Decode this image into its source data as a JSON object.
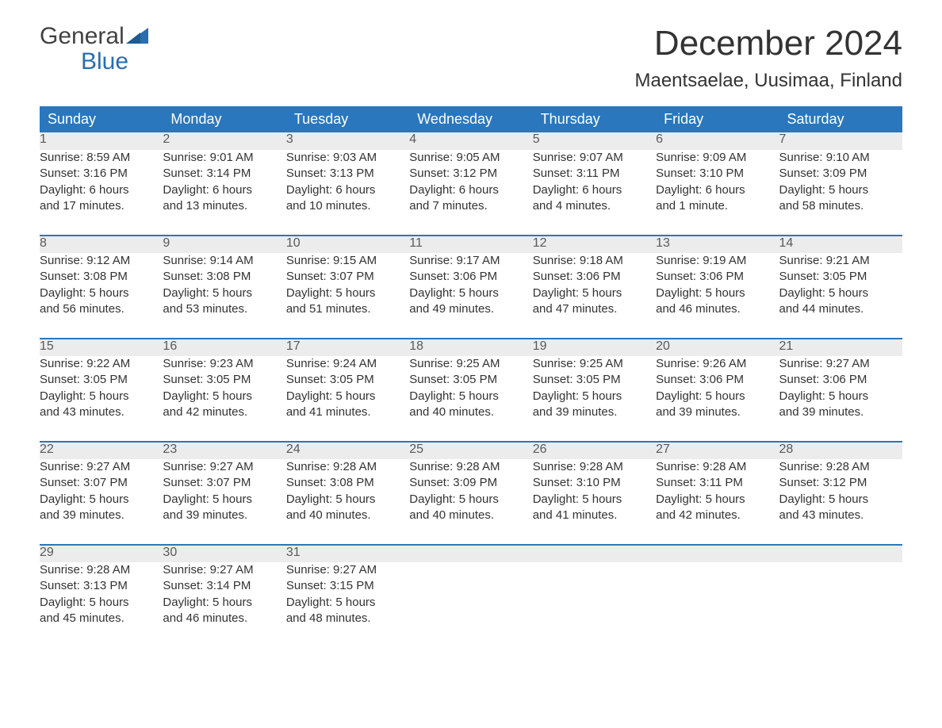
{
  "brand": {
    "word1": "General",
    "word2": "Blue",
    "logo_color": "#2a6db0",
    "logo_text_color": "#424242"
  },
  "title": "December 2024",
  "location": "Maentsaelae, Uusimaa, Finland",
  "colors": {
    "header_bg": "#2a77bd",
    "header_fg": "#ffffff",
    "daynum_bg": "#ececec",
    "daynum_fg": "#5a5a5a",
    "body_fg": "#333333",
    "week_border": "#2a77bd",
    "page_bg": "#ffffff"
  },
  "typography": {
    "title_fontsize": 44,
    "location_fontsize": 24,
    "header_fontsize": 18,
    "daynum_fontsize": 16,
    "detail_fontsize": 15
  },
  "day_headers": [
    "Sunday",
    "Monday",
    "Tuesday",
    "Wednesday",
    "Thursday",
    "Friday",
    "Saturday"
  ],
  "weeks": [
    [
      {
        "n": "1",
        "sunrise": "Sunrise: 8:59 AM",
        "sunset": "Sunset: 3:16 PM",
        "d1": "Daylight: 6 hours",
        "d2": "and 17 minutes."
      },
      {
        "n": "2",
        "sunrise": "Sunrise: 9:01 AM",
        "sunset": "Sunset: 3:14 PM",
        "d1": "Daylight: 6 hours",
        "d2": "and 13 minutes."
      },
      {
        "n": "3",
        "sunrise": "Sunrise: 9:03 AM",
        "sunset": "Sunset: 3:13 PM",
        "d1": "Daylight: 6 hours",
        "d2": "and 10 minutes."
      },
      {
        "n": "4",
        "sunrise": "Sunrise: 9:05 AM",
        "sunset": "Sunset: 3:12 PM",
        "d1": "Daylight: 6 hours",
        "d2": "and 7 minutes."
      },
      {
        "n": "5",
        "sunrise": "Sunrise: 9:07 AM",
        "sunset": "Sunset: 3:11 PM",
        "d1": "Daylight: 6 hours",
        "d2": "and 4 minutes."
      },
      {
        "n": "6",
        "sunrise": "Sunrise: 9:09 AM",
        "sunset": "Sunset: 3:10 PM",
        "d1": "Daylight: 6 hours",
        "d2": "and 1 minute."
      },
      {
        "n": "7",
        "sunrise": "Sunrise: 9:10 AM",
        "sunset": "Sunset: 3:09 PM",
        "d1": "Daylight: 5 hours",
        "d2": "and 58 minutes."
      }
    ],
    [
      {
        "n": "8",
        "sunrise": "Sunrise: 9:12 AM",
        "sunset": "Sunset: 3:08 PM",
        "d1": "Daylight: 5 hours",
        "d2": "and 56 minutes."
      },
      {
        "n": "9",
        "sunrise": "Sunrise: 9:14 AM",
        "sunset": "Sunset: 3:08 PM",
        "d1": "Daylight: 5 hours",
        "d2": "and 53 minutes."
      },
      {
        "n": "10",
        "sunrise": "Sunrise: 9:15 AM",
        "sunset": "Sunset: 3:07 PM",
        "d1": "Daylight: 5 hours",
        "d2": "and 51 minutes."
      },
      {
        "n": "11",
        "sunrise": "Sunrise: 9:17 AM",
        "sunset": "Sunset: 3:06 PM",
        "d1": "Daylight: 5 hours",
        "d2": "and 49 minutes."
      },
      {
        "n": "12",
        "sunrise": "Sunrise: 9:18 AM",
        "sunset": "Sunset: 3:06 PM",
        "d1": "Daylight: 5 hours",
        "d2": "and 47 minutes."
      },
      {
        "n": "13",
        "sunrise": "Sunrise: 9:19 AM",
        "sunset": "Sunset: 3:06 PM",
        "d1": "Daylight: 5 hours",
        "d2": "and 46 minutes."
      },
      {
        "n": "14",
        "sunrise": "Sunrise: 9:21 AM",
        "sunset": "Sunset: 3:05 PM",
        "d1": "Daylight: 5 hours",
        "d2": "and 44 minutes."
      }
    ],
    [
      {
        "n": "15",
        "sunrise": "Sunrise: 9:22 AM",
        "sunset": "Sunset: 3:05 PM",
        "d1": "Daylight: 5 hours",
        "d2": "and 43 minutes."
      },
      {
        "n": "16",
        "sunrise": "Sunrise: 9:23 AM",
        "sunset": "Sunset: 3:05 PM",
        "d1": "Daylight: 5 hours",
        "d2": "and 42 minutes."
      },
      {
        "n": "17",
        "sunrise": "Sunrise: 9:24 AM",
        "sunset": "Sunset: 3:05 PM",
        "d1": "Daylight: 5 hours",
        "d2": "and 41 minutes."
      },
      {
        "n": "18",
        "sunrise": "Sunrise: 9:25 AM",
        "sunset": "Sunset: 3:05 PM",
        "d1": "Daylight: 5 hours",
        "d2": "and 40 minutes."
      },
      {
        "n": "19",
        "sunrise": "Sunrise: 9:25 AM",
        "sunset": "Sunset: 3:05 PM",
        "d1": "Daylight: 5 hours",
        "d2": "and 39 minutes."
      },
      {
        "n": "20",
        "sunrise": "Sunrise: 9:26 AM",
        "sunset": "Sunset: 3:06 PM",
        "d1": "Daylight: 5 hours",
        "d2": "and 39 minutes."
      },
      {
        "n": "21",
        "sunrise": "Sunrise: 9:27 AM",
        "sunset": "Sunset: 3:06 PM",
        "d1": "Daylight: 5 hours",
        "d2": "and 39 minutes."
      }
    ],
    [
      {
        "n": "22",
        "sunrise": "Sunrise: 9:27 AM",
        "sunset": "Sunset: 3:07 PM",
        "d1": "Daylight: 5 hours",
        "d2": "and 39 minutes."
      },
      {
        "n": "23",
        "sunrise": "Sunrise: 9:27 AM",
        "sunset": "Sunset: 3:07 PM",
        "d1": "Daylight: 5 hours",
        "d2": "and 39 minutes."
      },
      {
        "n": "24",
        "sunrise": "Sunrise: 9:28 AM",
        "sunset": "Sunset: 3:08 PM",
        "d1": "Daylight: 5 hours",
        "d2": "and 40 minutes."
      },
      {
        "n": "25",
        "sunrise": "Sunrise: 9:28 AM",
        "sunset": "Sunset: 3:09 PM",
        "d1": "Daylight: 5 hours",
        "d2": "and 40 minutes."
      },
      {
        "n": "26",
        "sunrise": "Sunrise: 9:28 AM",
        "sunset": "Sunset: 3:10 PM",
        "d1": "Daylight: 5 hours",
        "d2": "and 41 minutes."
      },
      {
        "n": "27",
        "sunrise": "Sunrise: 9:28 AM",
        "sunset": "Sunset: 3:11 PM",
        "d1": "Daylight: 5 hours",
        "d2": "and 42 minutes."
      },
      {
        "n": "28",
        "sunrise": "Sunrise: 9:28 AM",
        "sunset": "Sunset: 3:12 PM",
        "d1": "Daylight: 5 hours",
        "d2": "and 43 minutes."
      }
    ],
    [
      {
        "n": "29",
        "sunrise": "Sunrise: 9:28 AM",
        "sunset": "Sunset: 3:13 PM",
        "d1": "Daylight: 5 hours",
        "d2": "and 45 minutes."
      },
      {
        "n": "30",
        "sunrise": "Sunrise: 9:27 AM",
        "sunset": "Sunset: 3:14 PM",
        "d1": "Daylight: 5 hours",
        "d2": "and 46 minutes."
      },
      {
        "n": "31",
        "sunrise": "Sunrise: 9:27 AM",
        "sunset": "Sunset: 3:15 PM",
        "d1": "Daylight: 5 hours",
        "d2": "and 48 minutes."
      },
      {
        "n": "",
        "sunrise": "",
        "sunset": "",
        "d1": "",
        "d2": ""
      },
      {
        "n": "",
        "sunrise": "",
        "sunset": "",
        "d1": "",
        "d2": ""
      },
      {
        "n": "",
        "sunrise": "",
        "sunset": "",
        "d1": "",
        "d2": ""
      },
      {
        "n": "",
        "sunrise": "",
        "sunset": "",
        "d1": "",
        "d2": ""
      }
    ]
  ]
}
